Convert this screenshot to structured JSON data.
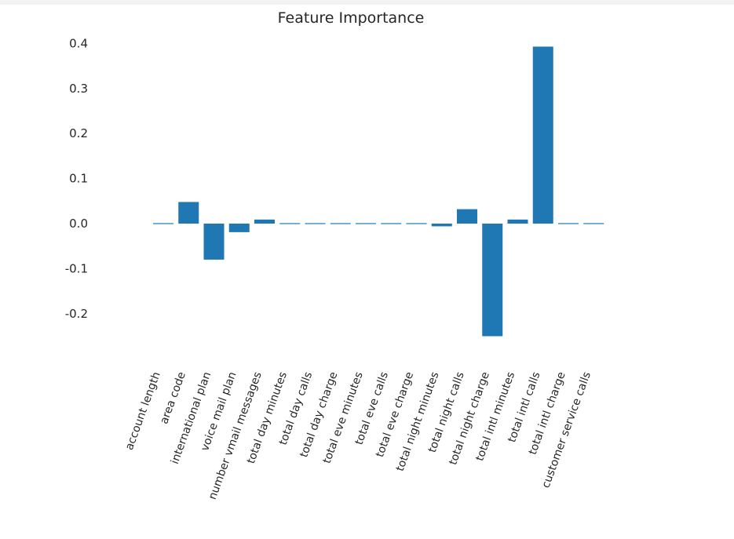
{
  "chart_data": {
    "type": "bar",
    "title": "Feature Importance",
    "xlabel": "",
    "ylabel": "",
    "ylim": [
      -0.29,
      0.43
    ],
    "yticks": [
      0.4,
      0.3,
      0.2,
      0.1,
      0.0,
      -0.1,
      -0.2
    ],
    "ytick_labels": [
      "0.4",
      "0.3",
      "0.2",
      "0.1",
      "0.0",
      "-0.1",
      "-0.2"
    ],
    "grid": false,
    "bar_color": "#1f77b4",
    "categories": [
      "account length",
      "area code",
      "international plan",
      "voice mail plan",
      "number vmail messages",
      "total day minutes",
      "total day calls",
      "total day charge",
      "total eve minutes",
      "total eve calls",
      "total eve charge",
      "total night minutes",
      "total night calls",
      "total night charge",
      "total intl minutes",
      "total intl calls",
      "total intl charge",
      "customer service calls"
    ],
    "values": [
      -0.002,
      0.048,
      -0.08,
      -0.019,
      0.009,
      0.0,
      0.002,
      0.002,
      -0.002,
      0.0,
      0.0,
      -0.006,
      0.032,
      -0.25,
      0.009,
      0.393,
      0.0,
      0.0
    ]
  }
}
